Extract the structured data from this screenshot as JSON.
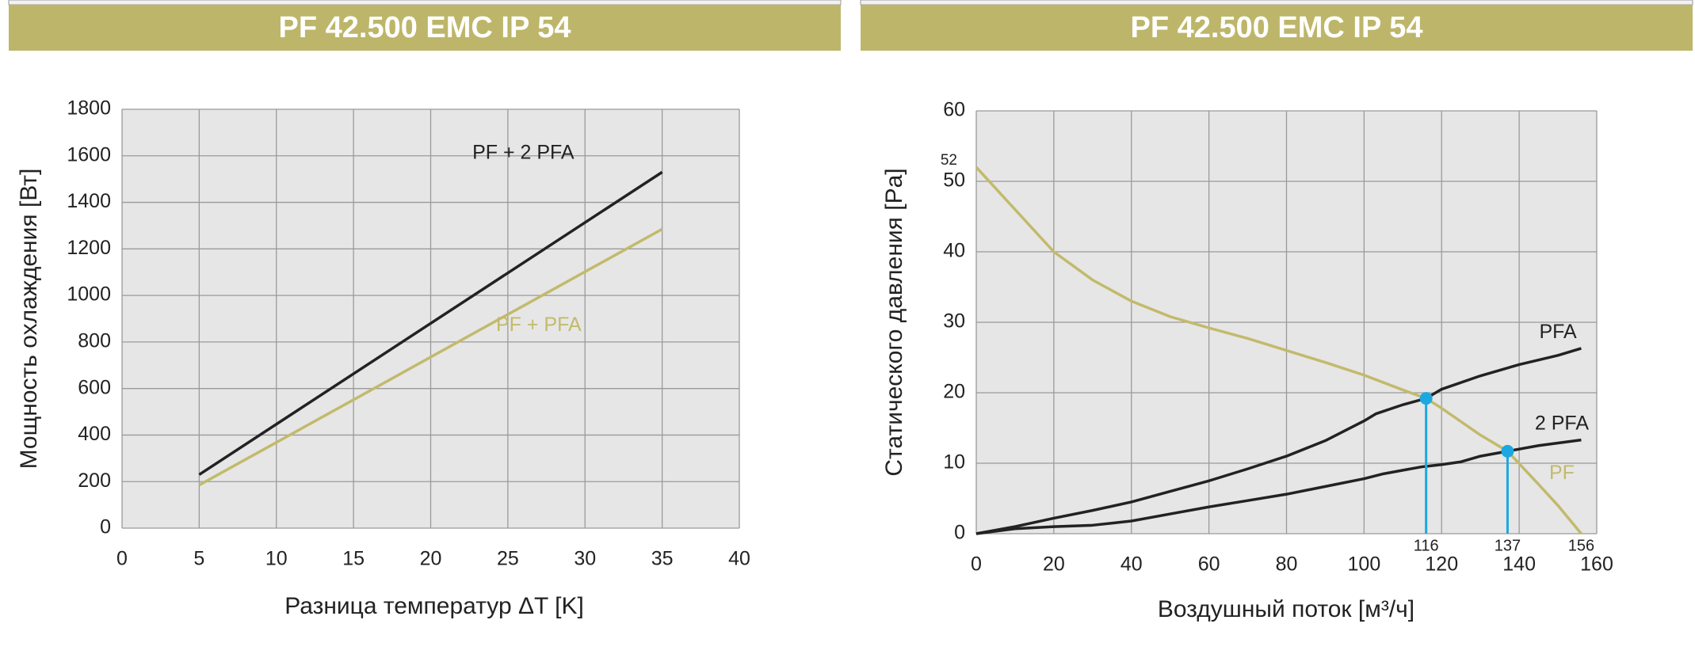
{
  "chart_data": [
    {
      "type": "line",
      "title": "PF 42.500 EMC IP 54",
      "xlabel": "Разница температур ΔT [K]",
      "ylabel": "Мощность охлаждения [Вт]",
      "xlim": [
        0,
        40
      ],
      "ylim": [
        0,
        1800
      ],
      "xticks": [
        0,
        5,
        10,
        15,
        20,
        25,
        30,
        35,
        40
      ],
      "yticks": [
        0,
        200,
        400,
        600,
        800,
        1000,
        1200,
        1400,
        1600,
        1800
      ],
      "grid": true,
      "series": [
        {
          "name": "PF + 2 PFA",
          "color": "#222222",
          "x": [
            5,
            35
          ],
          "values": [
            230,
            1530
          ]
        },
        {
          "name": "PF + PFA",
          "color": "#c2ba6c",
          "x": [
            5,
            35
          ],
          "values": [
            185,
            1285
          ]
        }
      ]
    },
    {
      "type": "line",
      "title": "PF 42.500 EMC IP 54",
      "xlabel": "Воздушный поток [м³/ч]",
      "ylabel": "Статического давления [Pa]",
      "xlim": [
        0,
        160
      ],
      "ylim": [
        0,
        60
      ],
      "xticks": [
        0,
        20,
        40,
        60,
        80,
        100,
        120,
        140,
        160
      ],
      "yticks": [
        0,
        10,
        20,
        30,
        40,
        50,
        60
      ],
      "y_marks": [
        52
      ],
      "x_marks": [
        116,
        137,
        156
      ],
      "grid": true,
      "series": [
        {
          "name": "PFA",
          "color": "#222222",
          "x": [
            0,
            10,
            20,
            30,
            40,
            50,
            60,
            70,
            80,
            90,
            100,
            103,
            110,
            116,
            120,
            130,
            140,
            150,
            156
          ],
          "values": [
            0,
            1,
            2.2,
            3.3,
            4.5,
            6,
            7.5,
            9.2,
            11,
            13.2,
            16,
            17,
            18.3,
            19.2,
            20.5,
            22.4,
            24,
            25.3,
            26.3
          ]
        },
        {
          "name": "2 PFA",
          "color": "#222222",
          "x": [
            0,
            10,
            20,
            30,
            40,
            50,
            60,
            70,
            80,
            90,
            100,
            105,
            110,
            115,
            120,
            125,
            130,
            137,
            145,
            156
          ],
          "values": [
            0,
            0.7,
            1,
            1.2,
            1.8,
            2.8,
            3.8,
            4.7,
            5.6,
            6.7,
            7.8,
            8.5,
            9,
            9.5,
            9.8,
            10.2,
            11,
            11.7,
            12.5,
            13.3
          ]
        },
        {
          "name": "PF",
          "color": "#c2ba6c",
          "x": [
            0,
            10,
            20,
            30,
            40,
            50,
            60,
            70,
            80,
            90,
            100,
            110,
            116,
            120,
            130,
            137,
            145,
            150,
            156
          ],
          "values": [
            52,
            46,
            40,
            36,
            33,
            30.8,
            29.2,
            27.7,
            26,
            24.3,
            22.5,
            20.4,
            19.2,
            17.8,
            14,
            11.7,
            7,
            4,
            0
          ]
        }
      ],
      "operating_points": {
        "color": "#1ba8e0",
        "x": [
          116,
          137
        ],
        "values": [
          19.2,
          11.7
        ]
      }
    }
  ]
}
